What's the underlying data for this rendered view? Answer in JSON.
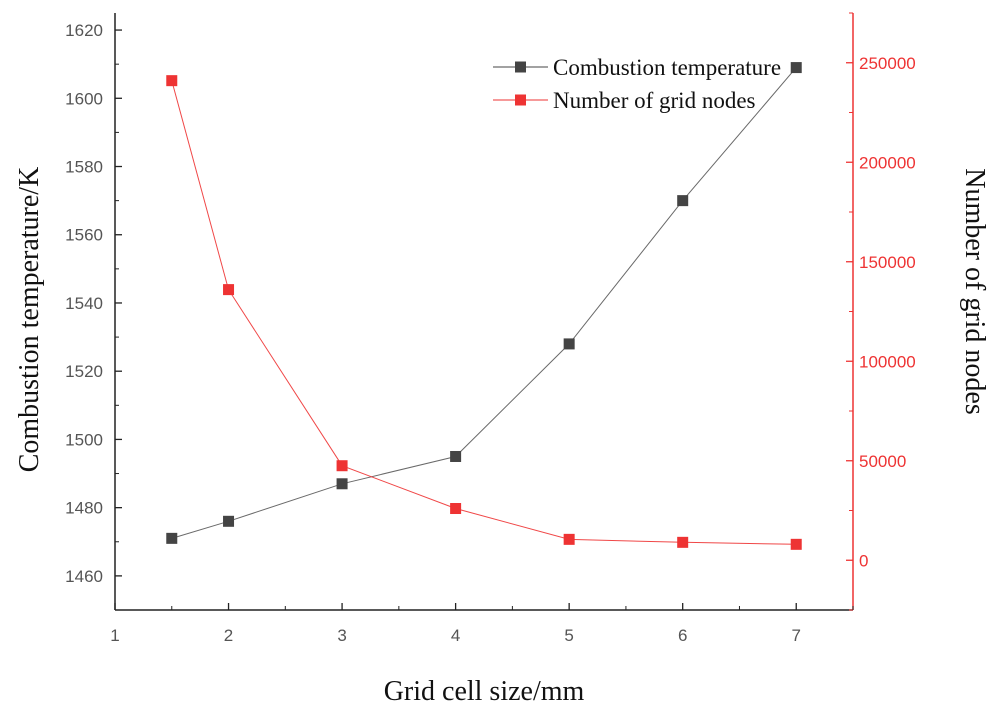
{
  "chart_data": {
    "type": "line",
    "x": [
      1.5,
      2,
      3,
      4,
      5,
      6,
      7
    ],
    "xlim": [
      1,
      7.5
    ],
    "xticks": [
      1,
      2,
      3,
      4,
      5,
      6,
      7
    ],
    "xlabel": "Grid cell size/mm",
    "series": [
      {
        "name": "Combustion temperature",
        "axis": "left",
        "color": "#444444",
        "marker": "square",
        "values": [
          1471,
          1476,
          1487,
          1495,
          1528,
          1570,
          1609
        ]
      },
      {
        "name": "Number of grid nodes",
        "axis": "right",
        "color": "#ee3333",
        "marker": "square",
        "values": [
          241000,
          136000,
          47500,
          26000,
          10500,
          9000,
          8000
        ]
      }
    ],
    "y_left": {
      "label": "Combustion temperature/K",
      "ylim": [
        1450,
        1625
      ],
      "ticks": [
        1460,
        1480,
        1500,
        1520,
        1540,
        1560,
        1580,
        1600,
        1620
      ]
    },
    "y_right": {
      "label": "Number of grid nodes",
      "ylim": [
        -25000,
        275000
      ],
      "ticks": [
        0,
        50000,
        100000,
        150000,
        200000,
        250000
      ]
    },
    "legend": "top-right",
    "grid": false
  }
}
